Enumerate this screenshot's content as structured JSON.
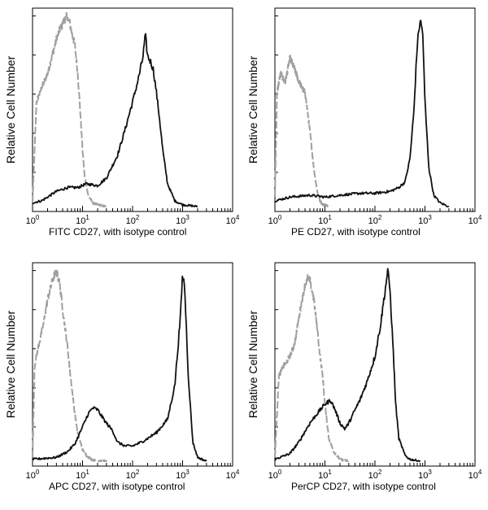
{
  "chart_data": [
    {
      "type": "line",
      "xscale": "log",
      "xlim": [
        1,
        10000
      ],
      "x_ticks": [
        1,
        10,
        100,
        1000,
        10000
      ],
      "x_tick_labels": [
        {
          "base": "10",
          "exp": "0"
        },
        {
          "base": "10",
          "exp": "1"
        },
        {
          "base": "10",
          "exp": "2"
        },
        {
          "base": "10",
          "exp": "3"
        },
        {
          "base": "10",
          "exp": "4"
        }
      ],
      "xlabel": "FITC  CD27,  with isotype control",
      "ylabel": "Relative Cell Number",
      "ylim": [
        0,
        1
      ],
      "series": [
        {
          "role": "isotype-control",
          "color": "#a0a0a0",
          "style": "dashed",
          "x": [
            1,
            1.2,
            1.5,
            2,
            2.5,
            3,
            3.5,
            4,
            4.5,
            5,
            5.5,
            6,
            7,
            8,
            9,
            10,
            11,
            13,
            16,
            20,
            30
          ],
          "y": [
            0.02,
            0.55,
            0.62,
            0.7,
            0.8,
            0.88,
            0.93,
            0.96,
            0.99,
            1.0,
            0.97,
            0.92,
            0.85,
            0.7,
            0.5,
            0.3,
            0.16,
            0.06,
            0.02,
            0.01,
            0
          ]
        },
        {
          "role": "CD27",
          "color": "#111111",
          "style": "solid",
          "x": [
            1,
            1.5,
            2,
            3,
            5,
            8,
            12,
            20,
            30,
            50,
            70,
            100,
            130,
            160,
            180,
            200,
            230,
            260,
            300,
            350,
            400,
            500,
            700,
            1000,
            2000
          ],
          "y": [
            0.02,
            0.03,
            0.05,
            0.08,
            0.1,
            0.1,
            0.12,
            0.11,
            0.15,
            0.27,
            0.4,
            0.55,
            0.67,
            0.78,
            0.9,
            0.79,
            0.76,
            0.72,
            0.6,
            0.45,
            0.3,
            0.12,
            0.03,
            0.01,
            0
          ]
        }
      ]
    },
    {
      "type": "line",
      "xscale": "log",
      "xlim": [
        1,
        10000
      ],
      "x_ticks": [
        1,
        10,
        100,
        1000,
        10000
      ],
      "x_tick_labels": [
        {
          "base": "10",
          "exp": "0"
        },
        {
          "base": "10",
          "exp": "1"
        },
        {
          "base": "10",
          "exp": "2"
        },
        {
          "base": "10",
          "exp": "3"
        },
        {
          "base": "10",
          "exp": "4"
        }
      ],
      "xlabel": "PE CD27, with isotype control",
      "ylabel": "Relative Cell Number",
      "ylim": [
        0,
        1
      ],
      "series": [
        {
          "role": "isotype-control",
          "color": "#a0a0a0",
          "style": "dashed",
          "x": [
            1,
            1.1,
            1.3,
            1.6,
            2,
            2.5,
            3,
            3.5,
            4,
            4.5,
            5,
            6,
            7,
            8,
            9,
            10,
            12
          ],
          "y": [
            0.05,
            0.6,
            0.7,
            0.65,
            0.78,
            0.72,
            0.66,
            0.62,
            0.6,
            0.5,
            0.4,
            0.2,
            0.08,
            0.03,
            0.01,
            0.01,
            0
          ]
        },
        {
          "role": "CD27",
          "color": "#111111",
          "style": "solid",
          "x": [
            1,
            2,
            5,
            10,
            20,
            50,
            100,
            200,
            300,
            400,
            500,
            600,
            700,
            800,
            900,
            1000,
            1200,
            1500,
            2000,
            3000
          ],
          "y": [
            0.03,
            0.05,
            0.06,
            0.05,
            0.06,
            0.07,
            0.07,
            0.08,
            0.1,
            0.13,
            0.25,
            0.5,
            0.85,
            0.98,
            0.92,
            0.55,
            0.2,
            0.06,
            0.02,
            0
          ]
        }
      ]
    },
    {
      "type": "line",
      "xscale": "log",
      "xlim": [
        1,
        10000
      ],
      "x_ticks": [
        1,
        10,
        100,
        1000,
        10000
      ],
      "x_tick_labels": [
        {
          "base": "10",
          "exp": "0"
        },
        {
          "base": "10",
          "exp": "1"
        },
        {
          "base": "10",
          "exp": "2"
        },
        {
          "base": "10",
          "exp": "3"
        },
        {
          "base": "10",
          "exp": "4"
        }
      ],
      "xlabel": "APC CD27, with isotype control",
      "ylabel": "Relative Cell Number",
      "ylim": [
        0,
        1
      ],
      "series": [
        {
          "role": "isotype-control",
          "color": "#a0a0a0",
          "style": "dashed",
          "x": [
            1,
            1.1,
            1.3,
            1.6,
            2,
            2.5,
            3,
            3.5,
            4,
            5,
            6,
            7,
            8,
            10,
            12,
            15,
            20,
            30
          ],
          "y": [
            0.02,
            0.5,
            0.6,
            0.7,
            0.85,
            0.95,
            1.0,
            0.93,
            0.8,
            0.6,
            0.4,
            0.25,
            0.15,
            0.06,
            0.03,
            0.01,
            0,
            0
          ]
        },
        {
          "role": "CD27",
          "color": "#111111",
          "style": "solid",
          "x": [
            1,
            3,
            5,
            7,
            10,
            13,
            16,
            20,
            25,
            30,
            40,
            50,
            70,
            100,
            150,
            200,
            300,
            500,
            700,
            900,
            1000,
            1100,
            1300,
            1600,
            2000,
            3000
          ],
          "y": [
            0.01,
            0.02,
            0.05,
            0.09,
            0.18,
            0.25,
            0.28,
            0.27,
            0.23,
            0.2,
            0.16,
            0.1,
            0.08,
            0.08,
            0.1,
            0.12,
            0.15,
            0.22,
            0.4,
            0.75,
            0.98,
            0.92,
            0.45,
            0.1,
            0.02,
            0
          ]
        }
      ]
    },
    {
      "type": "line",
      "xscale": "log",
      "xlim": [
        1,
        10000
      ],
      "x_ticks": [
        1,
        10,
        100,
        1000,
        10000
      ],
      "x_tick_labels": [
        {
          "base": "10",
          "exp": "0"
        },
        {
          "base": "10",
          "exp": "1"
        },
        {
          "base": "10",
          "exp": "2"
        },
        {
          "base": "10",
          "exp": "3"
        },
        {
          "base": "10",
          "exp": "4"
        }
      ],
      "xlabel": "PerCP CD27, with isotype control",
      "ylabel": "Relative Cell Number",
      "ylim": [
        0,
        1
      ],
      "series": [
        {
          "role": "isotype-control",
          "color": "#a0a0a0",
          "style": "dashed",
          "x": [
            1,
            1.2,
            1.5,
            2,
            2.5,
            3,
            3.5,
            4,
            4.5,
            5,
            6,
            7,
            8,
            9,
            10,
            12,
            15,
            20,
            30
          ],
          "y": [
            0.02,
            0.45,
            0.5,
            0.55,
            0.62,
            0.75,
            0.85,
            0.93,
            0.96,
            0.95,
            0.85,
            0.7,
            0.55,
            0.45,
            0.3,
            0.12,
            0.05,
            0.01,
            0
          ]
        },
        {
          "role": "CD27",
          "color": "#111111",
          "style": "solid",
          "x": [
            1,
            2,
            3,
            5,
            7,
            10,
            13,
            16,
            20,
            25,
            30,
            40,
            50,
            70,
            100,
            130,
            160,
            180,
            200,
            230,
            260,
            300,
            400,
            500,
            800
          ],
          "y": [
            0.01,
            0.04,
            0.1,
            0.2,
            0.25,
            0.3,
            0.32,
            0.27,
            0.2,
            0.17,
            0.2,
            0.27,
            0.32,
            0.42,
            0.55,
            0.72,
            0.9,
            1.0,
            0.9,
            0.6,
            0.3,
            0.12,
            0.03,
            0.01,
            0
          ]
        }
      ]
    }
  ]
}
